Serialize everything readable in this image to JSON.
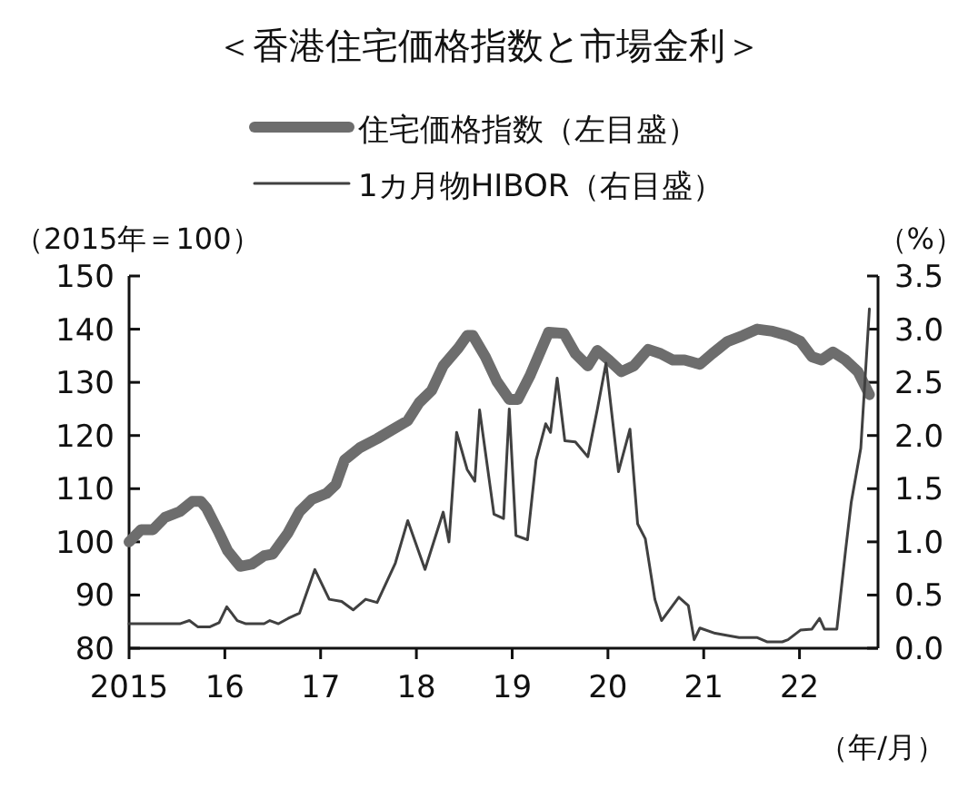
{
  "chart_data": {
    "type": "line",
    "title": "＜香港住宅価格指数と市場金利＞",
    "xlabel": "（年/月）",
    "ylabel": "（2015年＝100）",
    "y2label": "（%）",
    "legend": "top",
    "xlim": [
      2015,
      2022.82
    ],
    "ylim": [
      80,
      150
    ],
    "y2lim": [
      0,
      3.5
    ],
    "xticks": [
      {
        "value": 2015,
        "label": "2015"
      },
      {
        "value": 2016,
        "label": "16"
      },
      {
        "value": 2017,
        "label": "17"
      },
      {
        "value": 2018,
        "label": "18"
      },
      {
        "value": 2019,
        "label": "19"
      },
      {
        "value": 2020,
        "label": "20"
      },
      {
        "value": 2021,
        "label": "21"
      },
      {
        "value": 2022,
        "label": "22"
      }
    ],
    "yticks": [
      80,
      90,
      100,
      110,
      120,
      130,
      140,
      150
    ],
    "y2ticks": [
      {
        "value": 0,
        "label": "0.0"
      },
      {
        "value": 0.5,
        "label": "0.5"
      },
      {
        "value": 1,
        "label": "1.0"
      },
      {
        "value": 1.5,
        "label": "1.5"
      },
      {
        "value": 2,
        "label": "2.0"
      },
      {
        "value": 2.5,
        "label": "2.5"
      },
      {
        "value": 3,
        "label": "3.0"
      },
      {
        "value": 3.5,
        "label": "3.5"
      }
    ],
    "series": [
      {
        "name": "住宅価格指数（左目盛）",
        "color": "#6d6d6d",
        "axis": "y",
        "x": [
          2015,
          2015.125,
          2015.25,
          2015.375,
          2015.53,
          2015.66,
          2015.75,
          2015.81,
          2015.94,
          2016.03,
          2016.16,
          2016.28,
          2016.41,
          2016.5,
          2016.66,
          2016.78,
          2016.91,
          2017.06,
          2017.16,
          2017.25,
          2017.41,
          2017.59,
          2017.75,
          2017.91,
          2018.03,
          2018.16,
          2018.28,
          2018.44,
          2018.53,
          2018.59,
          2018.72,
          2018.84,
          2018.97,
          2019.06,
          2019.19,
          2019.38,
          2019.54,
          2019.66,
          2019.79,
          2019.89,
          2020.01,
          2020.14,
          2020.27,
          2020.42,
          2020.55,
          2020.68,
          2020.8,
          2020.96,
          2021.09,
          2021.25,
          2021.41,
          2021.56,
          2021.72,
          2021.88,
          2022.01,
          2022.13,
          2022.23,
          2022.35,
          2022.48,
          2022.61,
          2022.73
        ],
        "values": [
          100,
          102.3,
          102.3,
          104.6,
          105.7,
          107.6,
          107.6,
          106.3,
          101.7,
          98.3,
          95.4,
          95.8,
          97.4,
          97.7,
          101.7,
          105.7,
          108,
          109.1,
          110.8,
          115.4,
          117.7,
          119.4,
          121.1,
          122.8,
          126.2,
          128.5,
          133.1,
          136.5,
          138.8,
          138.8,
          134.8,
          130.2,
          126.8,
          126.8,
          131.4,
          139.4,
          139.2,
          135.4,
          133.1,
          136,
          134.2,
          132,
          133.1,
          136.2,
          135.4,
          134.2,
          134.2,
          133.4,
          135.4,
          137.7,
          138.8,
          140,
          139.6,
          138.8,
          137.7,
          134.8,
          134.2,
          135.7,
          134.2,
          132,
          127.7
        ]
      },
      {
        "name": "1カ月物HIBOR（右目盛）",
        "color": "#404040",
        "axis": "y2",
        "x": [
          2015,
          2015.53,
          2015.63,
          2015.72,
          2015.84,
          2015.94,
          2016.02,
          2016.13,
          2016.22,
          2016.41,
          2016.47,
          2016.56,
          2016.66,
          2016.78,
          2016.94,
          2017.09,
          2017.22,
          2017.34,
          2017.47,
          2017.59,
          2017.78,
          2017.91,
          2018.09,
          2018.28,
          2018.34,
          2018.42,
          2018.53,
          2018.61,
          2018.66,
          2018.81,
          2018.91,
          2018.97,
          2019.04,
          2019.16,
          2019.25,
          2019.35,
          2019.4,
          2019.47,
          2019.55,
          2019.66,
          2019.79,
          2019.89,
          2019.98,
          2020.11,
          2020.23,
          2020.31,
          2020.39,
          2020.49,
          2020.56,
          2020.74,
          2020.84,
          2020.9,
          2020.96,
          2021.12,
          2021.25,
          2021.37,
          2021.56,
          2021.66,
          2021.82,
          2021.88,
          2022.01,
          2022.13,
          2022.21,
          2022.26,
          2022.39,
          2022.48,
          2022.54,
          2022.64,
          2022.73
        ],
        "values": [
          0.23,
          0.23,
          0.26,
          0.2,
          0.2,
          0.24,
          0.39,
          0.26,
          0.23,
          0.23,
          0.26,
          0.23,
          0.28,
          0.33,
          0.74,
          0.46,
          0.44,
          0.36,
          0.46,
          0.43,
          0.8,
          1.2,
          0.74,
          1.28,
          1.0,
          2.03,
          1.68,
          1.57,
          2.24,
          1.26,
          1.22,
          2.25,
          1.06,
          1.02,
          1.77,
          2.11,
          2.03,
          2.54,
          1.95,
          1.94,
          1.8,
          2.25,
          2.68,
          1.66,
          2.06,
          1.17,
          1.03,
          0.46,
          0.26,
          0.48,
          0.4,
          0.08,
          0.19,
          0.14,
          0.12,
          0.1,
          0.1,
          0.06,
          0.06,
          0.08,
          0.17,
          0.18,
          0.28,
          0.18,
          0.18,
          0.91,
          1.37,
          1.88,
          3.19
        ]
      }
    ]
  }
}
